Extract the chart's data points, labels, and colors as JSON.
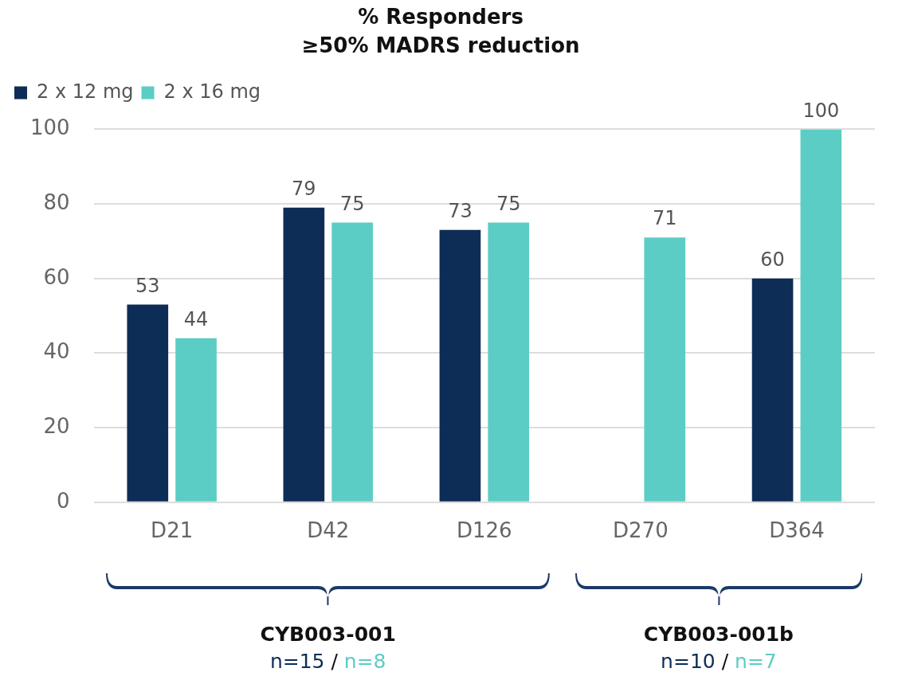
{
  "chart_data": {
    "type": "bar",
    "title": "% Responders",
    "subtitle": "≥50% MADRS reduction",
    "categories": [
      "D21",
      "D42",
      "D126",
      "D270",
      "D364"
    ],
    "series": [
      {
        "name": "2 x 12 mg",
        "color": "#0d2d56",
        "values": [
          53,
          79,
          73,
          null,
          60
        ]
      },
      {
        "name": "2 x 16 mg",
        "color": "#5ccdc4",
        "values": [
          44,
          75,
          75,
          71,
          100
        ]
      }
    ],
    "ylim": [
      0,
      100
    ],
    "yticks": [
      0,
      20,
      40,
      60,
      80,
      100
    ],
    "grid": "y",
    "legend": "top left",
    "data_labels": true,
    "annotations": [
      "CYB003-001",
      "n=15 / n=8",
      "CYB003-001b",
      "n=10 / n=7"
    ]
  }
}
